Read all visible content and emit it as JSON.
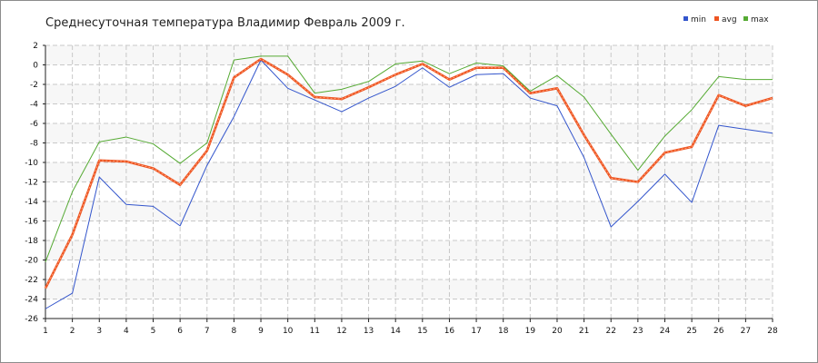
{
  "chart_data": {
    "type": "line",
    "title": "Среднесуточная температура Владимир  Февраль 2009 г.",
    "xlabel": "",
    "ylabel": "",
    "x": [
      1,
      2,
      3,
      4,
      5,
      6,
      7,
      8,
      9,
      10,
      11,
      12,
      13,
      14,
      15,
      16,
      17,
      18,
      19,
      20,
      21,
      22,
      23,
      24,
      25,
      26,
      27,
      28
    ],
    "xlim": [
      1,
      28
    ],
    "ylim": [
      -26,
      2
    ],
    "y_ticks": [
      2,
      0,
      -2,
      -4,
      -6,
      -8,
      -10,
      -12,
      -14,
      -16,
      -18,
      -20,
      -22,
      -24,
      -26
    ],
    "grid": true,
    "legend_position": "top-right",
    "series": [
      {
        "name": "min",
        "color": "#3355cc",
        "values": [
          -25.0,
          -23.4,
          -11.5,
          -14.3,
          -14.5,
          -16.5,
          -10.3,
          -5.3,
          0.5,
          -2.4,
          -3.6,
          -4.8,
          -3.4,
          -2.2,
          -0.3,
          -2.3,
          -1.0,
          -0.9,
          -3.4,
          -4.2,
          -9.5,
          -16.6,
          -14.0,
          -11.2,
          -14.1,
          -6.2,
          -6.6,
          -7.0
        ]
      },
      {
        "name": "avg",
        "color": "#ee5522",
        "values": [
          -22.9,
          -17.4,
          -9.8,
          -9.9,
          -10.6,
          -12.3,
          -8.8,
          -1.3,
          0.6,
          -1.0,
          -3.3,
          -3.5,
          -2.3,
          -1.0,
          0.1,
          -1.5,
          -0.3,
          -0.3,
          -2.9,
          -2.4,
          -7.2,
          -11.6,
          -12.0,
          -9.0,
          -8.4,
          -3.1,
          -4.2,
          -3.4
        ]
      },
      {
        "name": "max",
        "color": "#55aa33",
        "values": [
          -20.2,
          -13.0,
          -7.9,
          -7.4,
          -8.1,
          -10.1,
          -8.0,
          0.5,
          0.9,
          0.9,
          -2.9,
          -2.5,
          -1.7,
          0.1,
          0.4,
          -0.9,
          0.2,
          -0.1,
          -2.7,
          -1.1,
          -3.3,
          -7.1,
          -10.8,
          -7.3,
          -4.6,
          -1.2,
          -1.5,
          -1.5
        ]
      }
    ]
  }
}
